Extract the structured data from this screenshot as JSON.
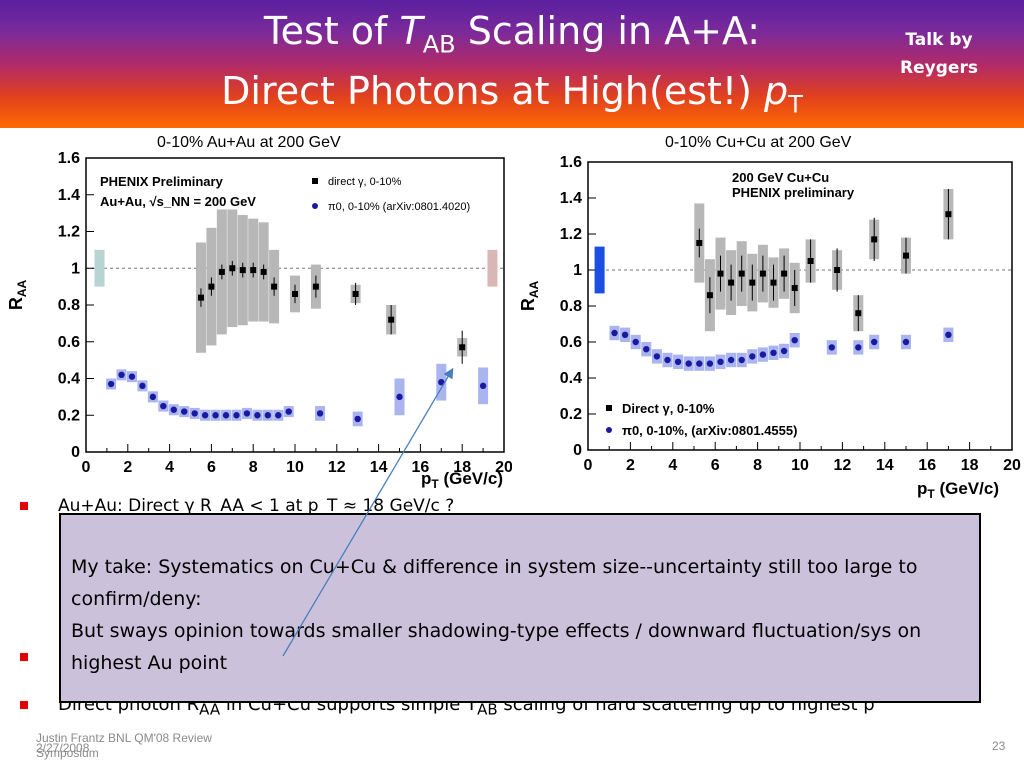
{
  "slide": {
    "title_part1": "Test of ",
    "title_T": "T",
    "title_sub": "AB",
    "title_part2": " Scaling in A+A:",
    "title_line2": "Direct Photons at High(est!) ",
    "title_p": "p",
    "title_psub": "T",
    "talk_by": "Talk by Reygers",
    "plot_left_label": "0-10% Au+Au at 200 GeV",
    "plot_right_label": "0-10% Cu+Cu at 200 GeV"
  },
  "chart_data": [
    {
      "type": "scatter",
      "title": "",
      "ylabel": "R_AA",
      "xlabel": "p_T (GeV/c)",
      "xlim": [
        0,
        20
      ],
      "ylim": [
        0,
        1.6
      ],
      "xticks": [
        "0",
        "2",
        "4",
        "6",
        "8",
        "10",
        "12",
        "14",
        "16",
        "18",
        "20"
      ],
      "yticks": [
        "0",
        "0.2",
        "0.4",
        "0.6",
        "0.8",
        "1",
        "1.2",
        "1.4",
        "1.6"
      ],
      "annotations": [
        "PHENIX Preliminary",
        "Au+Au, √s_NN = 200 GeV"
      ],
      "legend": [
        "direct γ, 0-10%",
        "π0, 0-10% (arXiv:0801.4020)"
      ],
      "series": [
        {
          "name": "direct γ, 0-10%",
          "x": [
            5.5,
            6,
            6.5,
            7,
            7.5,
            8,
            8.5,
            9,
            10,
            11,
            12.9,
            14.6,
            18
          ],
          "y": [
            0.84,
            0.9,
            0.98,
            1.0,
            0.99,
            0.99,
            0.98,
            0.9,
            0.86,
            0.9,
            0.86,
            0.72,
            0.57
          ]
        },
        {
          "name": "π0, 0-10% (arXiv:0801.4020)",
          "x": [
            1.2,
            1.7,
            2.2,
            2.7,
            3.2,
            3.7,
            4.2,
            4.7,
            5.2,
            5.7,
            6.2,
            6.7,
            7.2,
            7.7,
            8.2,
            8.7,
            9.2,
            9.7,
            11.2,
            13,
            15,
            17,
            19
          ],
          "y": [
            0.37,
            0.42,
            0.41,
            0.36,
            0.3,
            0.25,
            0.23,
            0.22,
            0.21,
            0.2,
            0.2,
            0.2,
            0.2,
            0.21,
            0.2,
            0.2,
            0.2,
            0.22,
            0.21,
            0.18,
            0.3,
            0.38,
            0.36
          ]
        }
      ]
    },
    {
      "type": "scatter",
      "title": "",
      "ylabel": "R_AA",
      "xlabel": "p_T (GeV/c)",
      "xlim": [
        0,
        20
      ],
      "ylim": [
        0,
        1.6
      ],
      "xticks": [
        "0",
        "2",
        "4",
        "6",
        "8",
        "10",
        "12",
        "14",
        "16",
        "18",
        "20"
      ],
      "yticks": [
        "0",
        "0.2",
        "0.4",
        "0.6",
        "0.8",
        "1",
        "1.2",
        "1.4",
        "1.6"
      ],
      "annotations": [
        "200 GeV  Cu+Cu",
        "PHENIX preliminary"
      ],
      "legend": [
        "Direct γ, 0-10%",
        "π0, 0-10%, (arXiv:0801.4555)"
      ],
      "series": [
        {
          "name": "Direct γ, 0-10%",
          "x": [
            5.25,
            5.75,
            6.25,
            6.75,
            7.25,
            7.75,
            8.25,
            8.75,
            9.25,
            9.75,
            10.5,
            11.75,
            12.75,
            13.5,
            15,
            17
          ],
          "y": [
            1.15,
            0.86,
            0.98,
            0.93,
            0.98,
            0.93,
            0.98,
            0.93,
            0.98,
            0.9,
            1.05,
            1.0,
            0.76,
            1.17,
            1.08,
            1.31
          ]
        },
        {
          "name": "π0, 0-10%, (arXiv:0801.4555)",
          "x": [
            1.25,
            1.75,
            2.25,
            2.75,
            3.25,
            3.75,
            4.25,
            4.75,
            5.25,
            5.75,
            6.25,
            6.75,
            7.25,
            7.75,
            8.25,
            8.75,
            9.25,
            9.75,
            11.5,
            12.75,
            13.5,
            15,
            17
          ],
          "y": [
            0.65,
            0.64,
            0.6,
            0.56,
            0.52,
            0.5,
            0.49,
            0.48,
            0.48,
            0.48,
            0.49,
            0.5,
            0.5,
            0.52,
            0.53,
            0.54,
            0.55,
            0.61,
            0.57,
            0.57,
            0.6,
            0.6,
            0.64
          ]
        }
      ]
    }
  ],
  "bullets": {
    "b1": "Au+Au: Direct γ R_AA < 1 at p_T ≈ 18 GeV/c ?",
    "b3_prefix": "Direct photon R",
    "b3_sub1": "AA",
    "b3_mid": " in Cu+Cu supports simple T",
    "b3_sub2": "AB",
    "b3_suffix": " scaling of hard scattering up to highest p"
  },
  "overlay": {
    "line1": "My take:  Systematics on Cu+Cu & difference in system size--uncertainty still too large to confirm/deny:",
    "line2": "But sways opinion towards smaller shadowing-type effects / downward fluctuation/sys on highest Au point"
  },
  "footer": {
    "author": "Justin Frantz BNL QM'08 Review Symposium",
    "date": "2/27/2008",
    "page": "23"
  }
}
